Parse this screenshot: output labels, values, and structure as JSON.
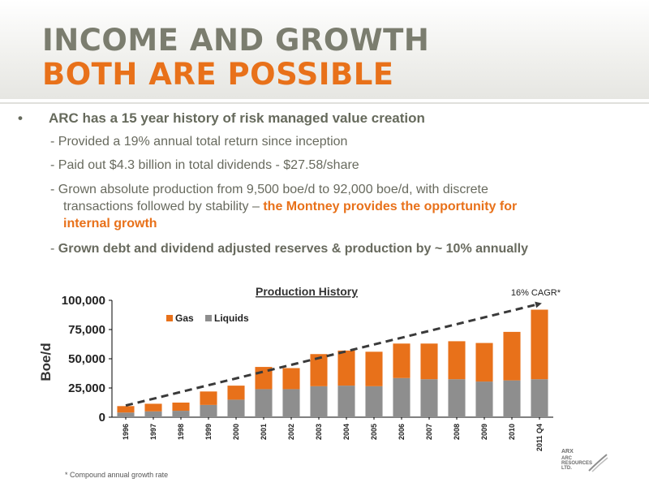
{
  "header": {
    "title_line1": "INCOME AND GROWTH",
    "title_line2": "BOTH ARE POSSIBLE"
  },
  "content": {
    "bullet_symbol": "•",
    "bullet": "ARC has a 15 year history of risk managed value creation",
    "sub1": "- Provided a 19% annual total return since inception",
    "sub2": "- Paid out $4.3 billion in total dividends - $27.58/share",
    "sub3_part1": "- Grown absolute production from 9,500 boe/d to 92,000 boe/d, with discrete",
    "sub3_part2": "transactions followed by stability – ",
    "sub3_highlight1": "the Montney provides the opportunity for",
    "sub3_highlight2": "internal growth",
    "sub4_dash": "- ",
    "sub4": "Grown debt and dividend adjusted reserves & production by ~ 10% annually"
  },
  "chart_data": {
    "type": "bar",
    "stacked": true,
    "title": "Production History",
    "ylabel": "Boe/d",
    "xlabel": "",
    "ylim": [
      0,
      100000
    ],
    "yticks": [
      "0",
      "25,000",
      "50,000",
      "75,000",
      "100,000"
    ],
    "yticks_values": [
      0,
      25000,
      50000,
      75000,
      100000
    ],
    "categories": [
      "1996",
      "1997",
      "1998",
      "1999",
      "2000",
      "2001",
      "2002",
      "2003",
      "2004",
      "2005",
      "2006",
      "2007",
      "2008",
      "2009",
      "2010",
      "2011 Q4"
    ],
    "series": [
      {
        "name": "Liquids",
        "color": "#8e8e8e",
        "values": [
          4000,
          5000,
          5500,
          10500,
          15000,
          24000,
          24000,
          26500,
          27000,
          26500,
          33500,
          32500,
          32500,
          30500,
          31500,
          32500
        ]
      },
      {
        "name": "Gas",
        "color": "#e8711a",
        "values": [
          5500,
          6500,
          7000,
          11500,
          12000,
          19000,
          18000,
          27500,
          30000,
          29500,
          29500,
          30500,
          32500,
          33000,
          41500,
          59500
        ]
      }
    ],
    "legend_position": "top-left",
    "trend_annotation": "16% CAGR*",
    "trend_line": {
      "from": [
        0,
        10000
      ],
      "to": [
        15,
        97000
      ]
    },
    "grid": false
  },
  "footnote": "* Compound annual growth rate",
  "logo": {
    "line1": "ARX",
    "line2": "ARC",
    "line3": "RESOURCES",
    "line4": "LTD."
  },
  "colors": {
    "title_gray": "#7b7d6f",
    "accent_orange": "#e8711a",
    "text_gray": "#686a5e",
    "liquids_gray": "#8e8e8e"
  }
}
